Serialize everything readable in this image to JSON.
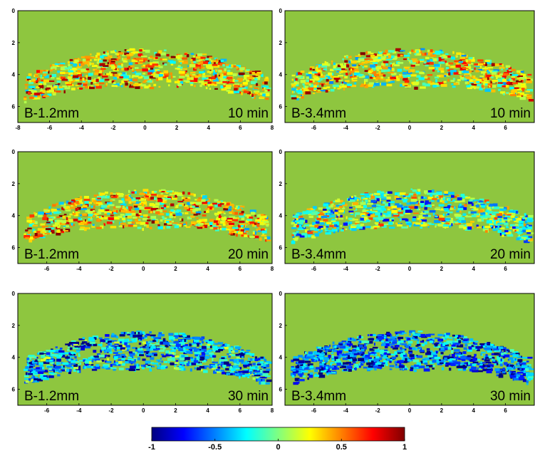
{
  "chart_data": {
    "type": "heatmap",
    "colormap": "jet",
    "background_color": "#8ec63f",
    "colorbar": {
      "range": [
        -1,
        1
      ],
      "tick_labels": [
        "-1",
        "-0.5",
        "0",
        "0.5",
        "1"
      ],
      "tick_values": [
        -1,
        -0.5,
        0,
        0.5,
        1
      ]
    },
    "panels": [
      {
        "id": "p1",
        "label": "B-1.2mm",
        "time": "10 min",
        "xlim": [
          -8,
          8
        ],
        "ylim": [
          0,
          7
        ],
        "xticks": [
          "-8",
          "-6",
          "-4",
          "-2",
          "0",
          "2",
          "4",
          "6",
          "8"
        ],
        "xtick_values": [
          -8,
          -6,
          -4,
          -2,
          0,
          2,
          4,
          6,
          8
        ],
        "yticks": [
          "0",
          "2",
          "4",
          "6"
        ],
        "ytick_values": [
          0,
          2,
          4,
          6
        ],
        "dominant_sign": 0.35
      },
      {
        "id": "p2",
        "label": "B-3.4mm",
        "time": "10 min",
        "xlim": [
          -7.8,
          7.8
        ],
        "ylim": [
          0,
          7
        ],
        "xticks": [
          "-6",
          "-4",
          "-2",
          "0",
          "2",
          "4",
          "6"
        ],
        "xtick_values": [
          -6,
          -4,
          -2,
          0,
          2,
          4,
          6
        ],
        "yticks": [
          "0",
          "2",
          "4",
          "6"
        ],
        "ytick_values": [
          0,
          2,
          4,
          6
        ],
        "dominant_sign": 0.25
      },
      {
        "id": "p3",
        "label": "B-1.2mm",
        "time": "20 min",
        "xlim": [
          -7.8,
          8
        ],
        "ylim": [
          0,
          7
        ],
        "xticks": [
          "-6",
          "-4",
          "-2",
          "0",
          "2",
          "4",
          "6",
          "8"
        ],
        "xtick_values": [
          -6,
          -4,
          -2,
          0,
          2,
          4,
          6,
          8
        ],
        "yticks": [
          "0",
          "2",
          "4",
          "6"
        ],
        "ytick_values": [
          0,
          2,
          4,
          6
        ],
        "dominant_sign": 0.3
      },
      {
        "id": "p4",
        "label": "B-3.4mm",
        "time": "20 min",
        "xlim": [
          -7.8,
          7.8
        ],
        "ylim": [
          0,
          7
        ],
        "xticks": [
          "-6",
          "-4",
          "-2",
          "0",
          "2",
          "4",
          "6"
        ],
        "xtick_values": [
          -6,
          -4,
          -2,
          0,
          2,
          4,
          6
        ],
        "yticks": [
          "0",
          "2",
          "4",
          "6"
        ],
        "ytick_values": [
          0,
          2,
          4,
          6
        ],
        "dominant_sign": -0.1
      },
      {
        "id": "p5",
        "label": "B-1.2mm",
        "time": "30 min",
        "xlim": [
          -7.8,
          8
        ],
        "ylim": [
          0,
          7
        ],
        "xticks": [
          "-6",
          "-4",
          "-2",
          "0",
          "2",
          "4",
          "6",
          "8"
        ],
        "xtick_values": [
          -6,
          -4,
          -2,
          0,
          2,
          4,
          6,
          8
        ],
        "yticks": [
          "0",
          "2",
          "4",
          "6"
        ],
        "ytick_values": [
          0,
          2,
          4,
          6
        ],
        "dominant_sign": -0.55
      },
      {
        "id": "p6",
        "label": "B-3.4mm",
        "time": "30 min",
        "xlim": [
          -7.8,
          7.8
        ],
        "ylim": [
          0,
          7
        ],
        "xticks": [
          "-6",
          "-4",
          "-2",
          "0",
          "2",
          "4",
          "6"
        ],
        "xtick_values": [
          -6,
          -4,
          -2,
          0,
          2,
          4,
          6
        ],
        "yticks": [
          "0",
          "2",
          "4",
          "6"
        ],
        "ytick_values": [
          0,
          2,
          4,
          6
        ],
        "dominant_sign": -0.75
      }
    ]
  }
}
